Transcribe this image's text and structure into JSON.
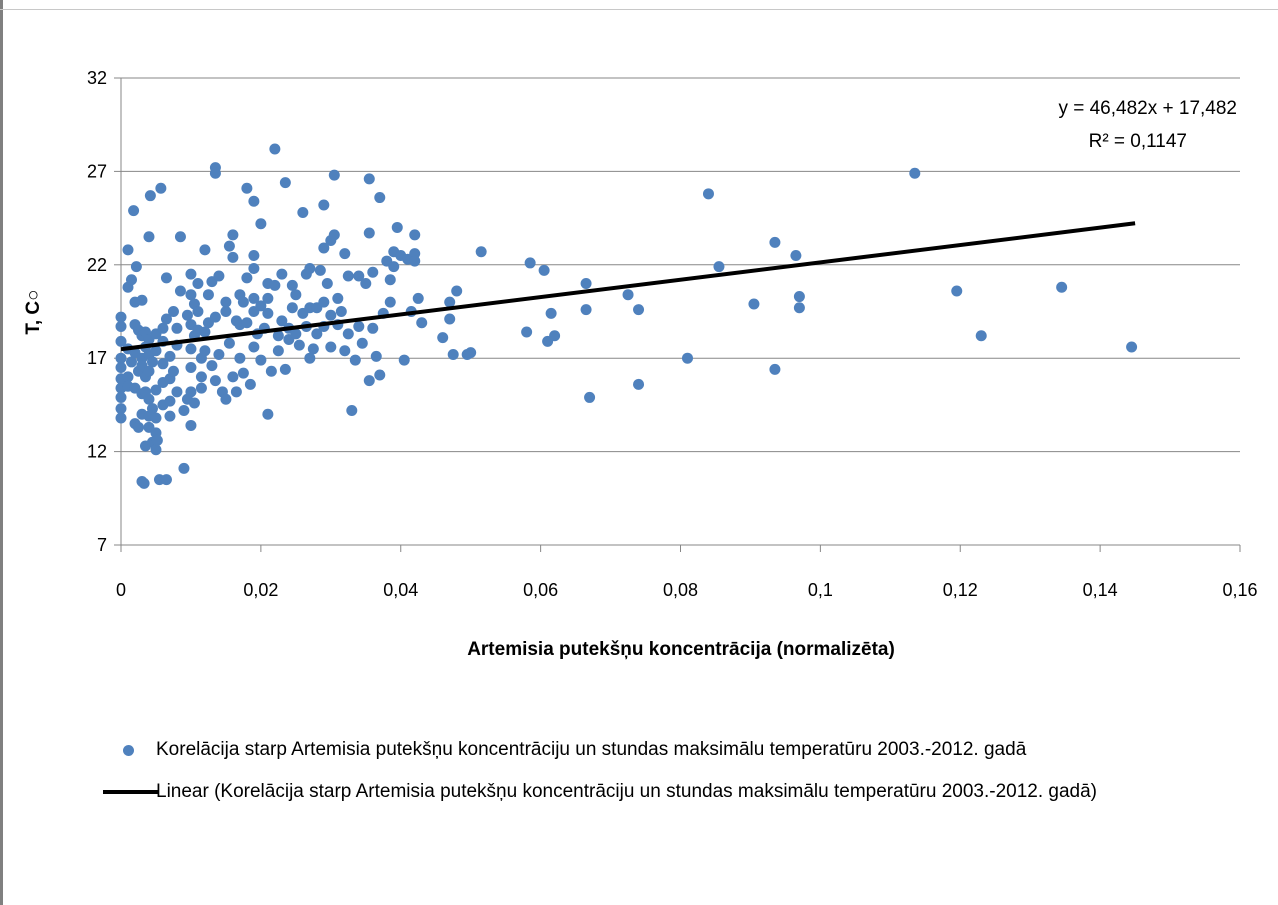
{
  "chart_data": {
    "type": "scatter",
    "xlabel": "Artemisia putekšņu koncentrācija (normalizēta)",
    "ylabel": "T, C○",
    "xlim": [
      0,
      0.16
    ],
    "ylim": [
      7,
      32
    ],
    "x_ticks": [
      "0",
      "0,02",
      "0,04",
      "0,06",
      "0,08",
      "0,1",
      "0,12",
      "0,14",
      "0,16"
    ],
    "y_ticks": [
      "7",
      "12",
      "17",
      "22",
      "27",
      "32"
    ],
    "grid": "horizontal",
    "legend_position": "bottom",
    "trendline": {
      "type": "linear",
      "slope": 46.482,
      "intercept": 17.482,
      "x_range": [
        0,
        0.145
      ],
      "equation_label": "y = 46,482x + 17,482",
      "r2_label": "R² = 0,1147",
      "color": "#000000"
    },
    "series": [
      {
        "name": "Korelācija starp Artemisia putekšņu koncentrāciju un stundas maksimālu temperatūru 2003.-2012. gadā",
        "color": "#4f81bd",
        "points": [
          [
            0.0,
            19.2
          ],
          [
            0.0,
            18.7
          ],
          [
            0.0,
            17.9
          ],
          [
            0.0,
            17.0
          ],
          [
            0.0,
            16.5
          ],
          [
            0.0,
            15.9
          ],
          [
            0.0,
            15.4
          ],
          [
            0.0,
            14.9
          ],
          [
            0.0,
            14.3
          ],
          [
            0.0,
            13.8
          ],
          [
            0.001,
            22.8
          ],
          [
            0.001,
            20.8
          ],
          [
            0.001,
            17.5
          ],
          [
            0.001,
            16.0
          ],
          [
            0.001,
            15.5
          ],
          [
            0.0015,
            21.2
          ],
          [
            0.0015,
            16.8
          ],
          [
            0.002,
            20.0
          ],
          [
            0.002,
            18.8
          ],
          [
            0.002,
            17.3
          ],
          [
            0.002,
            15.4
          ],
          [
            0.002,
            13.5
          ],
          [
            0.0018,
            24.9
          ],
          [
            0.0022,
            21.9
          ],
          [
            0.0025,
            18.5
          ],
          [
            0.0025,
            16.3
          ],
          [
            0.0025,
            13.3
          ],
          [
            0.003,
            20.1
          ],
          [
            0.003,
            18.2
          ],
          [
            0.003,
            17.0
          ],
          [
            0.003,
            16.6
          ],
          [
            0.003,
            15.1
          ],
          [
            0.003,
            14.0
          ],
          [
            0.003,
            10.4
          ],
          [
            0.0033,
            10.3
          ],
          [
            0.0035,
            18.4
          ],
          [
            0.0035,
            17.6
          ],
          [
            0.0035,
            16.0
          ],
          [
            0.0035,
            15.2
          ],
          [
            0.0035,
            12.3
          ],
          [
            0.004,
            23.5
          ],
          [
            0.004,
            18.0
          ],
          [
            0.004,
            17.2
          ],
          [
            0.004,
            16.3
          ],
          [
            0.004,
            14.8
          ],
          [
            0.004,
            13.9
          ],
          [
            0.004,
            13.3
          ],
          [
            0.0042,
            25.7
          ],
          [
            0.0045,
            16.8
          ],
          [
            0.0045,
            14.3
          ],
          [
            0.0045,
            12.5
          ],
          [
            0.005,
            18.3
          ],
          [
            0.005,
            17.4
          ],
          [
            0.005,
            15.3
          ],
          [
            0.005,
            13.8
          ],
          [
            0.005,
            13.0
          ],
          [
            0.005,
            12.1
          ],
          [
            0.0052,
            12.6
          ],
          [
            0.0055,
            10.5
          ],
          [
            0.0057,
            26.1
          ],
          [
            0.006,
            18.6
          ],
          [
            0.006,
            17.9
          ],
          [
            0.006,
            16.7
          ],
          [
            0.006,
            15.7
          ],
          [
            0.006,
            14.5
          ],
          [
            0.0065,
            21.3
          ],
          [
            0.0065,
            19.1
          ],
          [
            0.0065,
            10.5
          ],
          [
            0.007,
            17.1
          ],
          [
            0.007,
            15.9
          ],
          [
            0.007,
            14.7
          ],
          [
            0.007,
            13.9
          ],
          [
            0.0075,
            19.5
          ],
          [
            0.0075,
            16.3
          ],
          [
            0.008,
            18.6
          ],
          [
            0.008,
            17.7
          ],
          [
            0.008,
            15.2
          ],
          [
            0.0085,
            20.6
          ],
          [
            0.0085,
            23.5
          ],
          [
            0.009,
            14.2
          ],
          [
            0.009,
            11.1
          ],
          [
            0.0095,
            19.3
          ],
          [
            0.0095,
            14.8
          ],
          [
            0.01,
            21.5
          ],
          [
            0.01,
            20.4
          ],
          [
            0.01,
            18.8
          ],
          [
            0.01,
            17.5
          ],
          [
            0.01,
            16.5
          ],
          [
            0.01,
            15.2
          ],
          [
            0.01,
            13.4
          ],
          [
            0.0105,
            19.9
          ],
          [
            0.0105,
            18.2
          ],
          [
            0.0105,
            14.6
          ],
          [
            0.011,
            21.0
          ],
          [
            0.011,
            19.5
          ],
          [
            0.011,
            18.5
          ],
          [
            0.0115,
            17.0
          ],
          [
            0.0115,
            16.0
          ],
          [
            0.0115,
            15.4
          ],
          [
            0.012,
            22.8
          ],
          [
            0.012,
            18.4
          ],
          [
            0.012,
            17.4
          ],
          [
            0.0125,
            20.4
          ],
          [
            0.0125,
            18.9
          ],
          [
            0.013,
            21.1
          ],
          [
            0.013,
            16.6
          ],
          [
            0.0135,
            27.2
          ],
          [
            0.0135,
            26.9
          ],
          [
            0.0135,
            19.2
          ],
          [
            0.0135,
            15.8
          ],
          [
            0.014,
            21.4
          ],
          [
            0.014,
            17.2
          ],
          [
            0.0145,
            15.2
          ],
          [
            0.015,
            20.0
          ],
          [
            0.015,
            19.5
          ],
          [
            0.015,
            14.8
          ],
          [
            0.0155,
            23.0
          ],
          [
            0.0155,
            17.8
          ],
          [
            0.016,
            23.6
          ],
          [
            0.016,
            22.4
          ],
          [
            0.016,
            16.0
          ],
          [
            0.0165,
            19.0
          ],
          [
            0.0165,
            15.2
          ],
          [
            0.017,
            20.4
          ],
          [
            0.017,
            18.8
          ],
          [
            0.017,
            17.0
          ],
          [
            0.0175,
            20.0
          ],
          [
            0.0175,
            16.2
          ],
          [
            0.018,
            26.1
          ],
          [
            0.018,
            21.3
          ],
          [
            0.018,
            18.9
          ],
          [
            0.0185,
            15.6
          ],
          [
            0.019,
            25.4
          ],
          [
            0.019,
            22.5
          ],
          [
            0.019,
            21.8
          ],
          [
            0.019,
            20.2
          ],
          [
            0.019,
            19.5
          ],
          [
            0.019,
            17.6
          ],
          [
            0.0195,
            18.3
          ],
          [
            0.02,
            24.2
          ],
          [
            0.02,
            19.8
          ],
          [
            0.02,
            16.9
          ],
          [
            0.0205,
            18.6
          ],
          [
            0.021,
            21.0
          ],
          [
            0.021,
            20.2
          ],
          [
            0.021,
            19.4
          ],
          [
            0.021,
            14.0
          ],
          [
            0.0215,
            16.3
          ],
          [
            0.022,
            28.2
          ],
          [
            0.022,
            20.9
          ],
          [
            0.0225,
            18.2
          ],
          [
            0.0225,
            17.4
          ],
          [
            0.023,
            21.5
          ],
          [
            0.023,
            19.0
          ],
          [
            0.0235,
            26.4
          ],
          [
            0.0235,
            16.4
          ],
          [
            0.024,
            18.6
          ],
          [
            0.024,
            18.0
          ],
          [
            0.0245,
            20.9
          ],
          [
            0.0245,
            19.7
          ],
          [
            0.025,
            20.4
          ],
          [
            0.025,
            18.3
          ],
          [
            0.0255,
            17.7
          ],
          [
            0.026,
            24.8
          ],
          [
            0.026,
            19.4
          ],
          [
            0.0265,
            21.5
          ],
          [
            0.0265,
            18.7
          ],
          [
            0.027,
            21.8
          ],
          [
            0.027,
            19.7
          ],
          [
            0.027,
            17.0
          ],
          [
            0.0275,
            17.5
          ],
          [
            0.028,
            19.7
          ],
          [
            0.028,
            18.3
          ],
          [
            0.0285,
            21.7
          ],
          [
            0.029,
            25.2
          ],
          [
            0.029,
            22.9
          ],
          [
            0.029,
            20.0
          ],
          [
            0.029,
            18.7
          ],
          [
            0.0295,
            21.0
          ],
          [
            0.03,
            23.3
          ],
          [
            0.03,
            19.3
          ],
          [
            0.03,
            17.6
          ],
          [
            0.0305,
            26.8
          ],
          [
            0.0305,
            23.6
          ],
          [
            0.031,
            20.2
          ],
          [
            0.031,
            18.8
          ],
          [
            0.0315,
            19.5
          ],
          [
            0.032,
            22.6
          ],
          [
            0.032,
            17.4
          ],
          [
            0.0325,
            21.4
          ],
          [
            0.0325,
            18.3
          ],
          [
            0.033,
            14.2
          ],
          [
            0.0335,
            16.9
          ],
          [
            0.034,
            21.4
          ],
          [
            0.034,
            18.7
          ],
          [
            0.0345,
            17.8
          ],
          [
            0.035,
            21.0
          ],
          [
            0.0355,
            26.6
          ],
          [
            0.0355,
            23.7
          ],
          [
            0.0355,
            15.8
          ],
          [
            0.036,
            21.6
          ],
          [
            0.036,
            18.6
          ],
          [
            0.0365,
            17.1
          ],
          [
            0.037,
            25.6
          ],
          [
            0.037,
            16.1
          ],
          [
            0.0375,
            19.4
          ],
          [
            0.038,
            22.2
          ],
          [
            0.0385,
            21.2
          ],
          [
            0.0385,
            20.0
          ],
          [
            0.039,
            22.7
          ],
          [
            0.039,
            21.9
          ],
          [
            0.0395,
            24.0
          ],
          [
            0.04,
            22.5
          ],
          [
            0.0405,
            16.9
          ],
          [
            0.041,
            22.3
          ],
          [
            0.0415,
            19.5
          ],
          [
            0.042,
            23.6
          ],
          [
            0.042,
            22.6
          ],
          [
            0.042,
            22.2
          ],
          [
            0.0425,
            20.2
          ],
          [
            0.043,
            18.9
          ],
          [
            0.046,
            18.1
          ],
          [
            0.047,
            20.0
          ],
          [
            0.047,
            19.1
          ],
          [
            0.0475,
            17.2
          ],
          [
            0.048,
            20.6
          ],
          [
            0.0495,
            17.2
          ],
          [
            0.05,
            17.3
          ],
          [
            0.0515,
            22.7
          ],
          [
            0.058,
            18.4
          ],
          [
            0.0585,
            22.1
          ],
          [
            0.0605,
            21.7
          ],
          [
            0.061,
            17.9
          ],
          [
            0.0615,
            19.4
          ],
          [
            0.062,
            18.2
          ],
          [
            0.0665,
            19.6
          ],
          [
            0.0665,
            21.0
          ],
          [
            0.067,
            14.9
          ],
          [
            0.0725,
            20.4
          ],
          [
            0.074,
            15.6
          ],
          [
            0.074,
            19.6
          ],
          [
            0.081,
            17.0
          ],
          [
            0.084,
            25.8
          ],
          [
            0.0855,
            21.9
          ],
          [
            0.0905,
            19.9
          ],
          [
            0.0935,
            23.2
          ],
          [
            0.0935,
            16.4
          ],
          [
            0.0965,
            22.5
          ],
          [
            0.097,
            20.3
          ],
          [
            0.097,
            19.7
          ],
          [
            0.1135,
            26.9
          ],
          [
            0.1195,
            20.6
          ],
          [
            0.123,
            18.2
          ],
          [
            0.1345,
            20.8
          ],
          [
            0.1445,
            17.6
          ]
        ]
      }
    ],
    "legend": [
      {
        "kind": "marker",
        "label": "Korelācija starp Artemisia putekšņu koncentrāciju un stundas maksimālu temperatūru 2003.-2012. gadā"
      },
      {
        "kind": "line",
        "label": "Linear (Korelācija starp Artemisia putekšņu koncentrāciju un stundas maksimālu temperatūru 2003.-2012. gadā)"
      }
    ]
  }
}
